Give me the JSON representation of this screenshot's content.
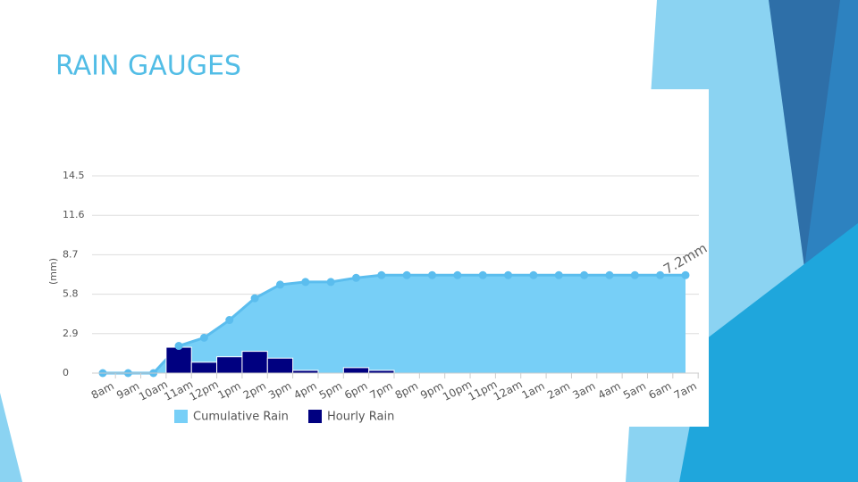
{
  "chart_data": {
    "type": "area-bar",
    "title": "RAIN GAUGES",
    "y_label": "(mm)",
    "categories": [
      "8am",
      "9am",
      "10am",
      "11am",
      "12pm",
      "1pm",
      "2pm",
      "3pm",
      "4pm",
      "5pm",
      "6pm",
      "7pm",
      "8pm",
      "9pm",
      "10pm",
      "11pm",
      "12am",
      "1am",
      "2am",
      "3am",
      "4am",
      "5am",
      "6am",
      "7am"
    ],
    "series": [
      {
        "name": "Cumulative Rain",
        "color": "#77cff7",
        "values": [
          0,
          0,
          0,
          2.0,
          2.6,
          3.9,
          5.5,
          6.5,
          6.7,
          6.7,
          7.0,
          7.2,
          7.2,
          7.2,
          7.2,
          7.2,
          7.2,
          7.2,
          7.2,
          7.2,
          7.2,
          7.2,
          7.2,
          7.2
        ]
      },
      {
        "name": "Hourly Rain",
        "color": "#000080",
        "values": [
          0,
          0,
          0,
          1.9,
          0.8,
          1.2,
          1.6,
          1.1,
          0.2,
          0,
          0.4,
          0.2,
          0,
          0,
          0,
          0,
          0,
          0,
          0,
          0,
          0,
          0,
          0,
          0
        ]
      }
    ],
    "annotation": "7.2mm",
    "ylim": [
      0,
      14.5
    ],
    "yticks": [
      0,
      2.9,
      5.8,
      8.7,
      11.6,
      14.5
    ],
    "grid": true
  }
}
